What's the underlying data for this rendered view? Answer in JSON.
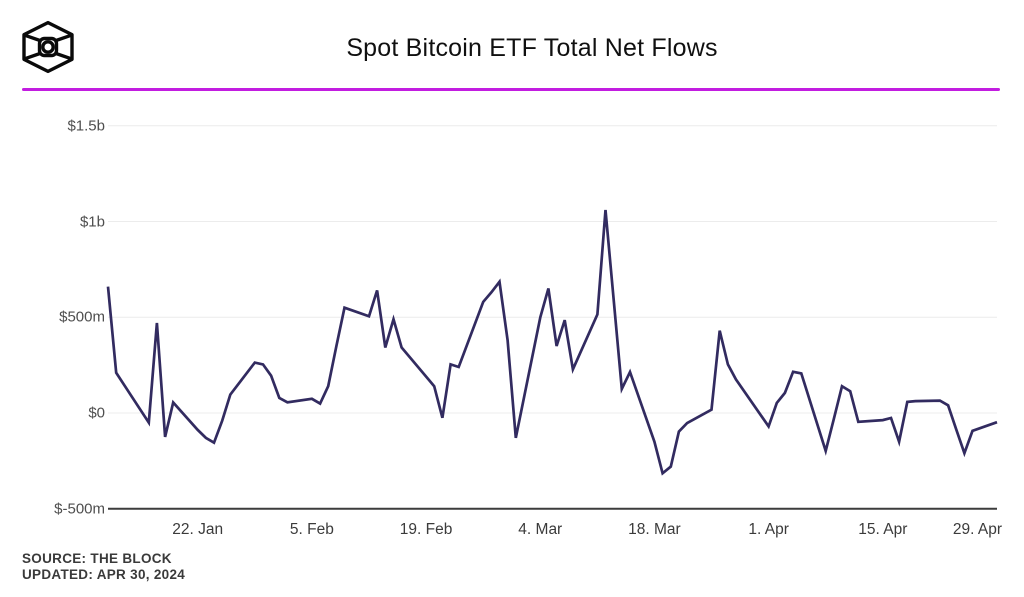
{
  "header": {
    "title": "Spot Bitcoin ETF Total Net Flows",
    "logo_name": "the-block-logo"
  },
  "footer": {
    "source_label": "SOURCE: THE BLOCK",
    "updated_label": "UPDATED: APR 30, 2024"
  },
  "colors": {
    "accent_divider": "#c21de0",
    "line": "#322b60",
    "gridline": "#ececec",
    "axis": "#3c3c3c",
    "logo": "#0a0a0a"
  },
  "chart_data": {
    "type": "line",
    "title": "Spot Bitcoin ETF Total Net Flows",
    "xlabel": "",
    "ylabel": "",
    "legend_position": "none",
    "grid": true,
    "x_axis": {
      "start_date": "2024-01-11",
      "end_date": "2024-04-29",
      "ticks": [
        {
          "label": "22. Jan",
          "date": "2024-01-22"
        },
        {
          "label": "5. Feb",
          "date": "2024-02-05"
        },
        {
          "label": "19. Feb",
          "date": "2024-02-19"
        },
        {
          "label": "4. Mar",
          "date": "2024-03-04"
        },
        {
          "label": "18. Mar",
          "date": "2024-03-18"
        },
        {
          "label": "1. Apr",
          "date": "2024-04-01"
        },
        {
          "label": "15. Apr",
          "date": "2024-04-15"
        },
        {
          "label": "29. Apr",
          "date": "2024-04-29"
        }
      ]
    },
    "y_axis": {
      "unit": "USD millions",
      "range": [
        -500,
        1500
      ],
      "ticks": [
        {
          "label": "$1.5b",
          "value": 1500
        },
        {
          "label": "$1b",
          "value": 1000
        },
        {
          "label": "$500m",
          "value": 500
        },
        {
          "label": "$0",
          "value": 0
        },
        {
          "label": "$-500m",
          "value": -500
        }
      ]
    },
    "series": [
      {
        "name": "Total Net Flows ($m)",
        "points": [
          [
            "2024-01-11",
            660
          ],
          [
            "2024-01-12",
            210
          ],
          [
            "2024-01-16",
            -50
          ],
          [
            "2024-01-17",
            470
          ],
          [
            "2024-01-18",
            -125
          ],
          [
            "2024-01-19",
            55
          ],
          [
            "2024-01-22",
            -88
          ],
          [
            "2024-01-23",
            -130
          ],
          [
            "2024-01-24",
            -155
          ],
          [
            "2024-01-25",
            -40
          ],
          [
            "2024-01-26",
            96
          ],
          [
            "2024-01-29",
            263
          ],
          [
            "2024-01-30",
            254
          ],
          [
            "2024-01-31",
            195
          ],
          [
            "2024-02-01",
            79
          ],
          [
            "2024-02-02",
            56
          ],
          [
            "2024-02-05",
            74
          ],
          [
            "2024-02-06",
            49
          ],
          [
            "2024-02-07",
            140
          ],
          [
            "2024-02-08",
            350
          ],
          [
            "2024-02-09",
            550
          ],
          [
            "2024-02-12",
            505
          ],
          [
            "2024-02-13",
            640
          ],
          [
            "2024-02-14",
            342
          ],
          [
            "2024-02-15",
            490
          ],
          [
            "2024-02-16",
            342
          ],
          [
            "2024-02-20",
            140
          ],
          [
            "2024-02-21",
            -25
          ],
          [
            "2024-02-22",
            254
          ],
          [
            "2024-02-23",
            240
          ],
          [
            "2024-02-26",
            580
          ],
          [
            "2024-02-27",
            630
          ],
          [
            "2024-02-28",
            685
          ],
          [
            "2024-02-29",
            380
          ],
          [
            "2024-03-01",
            -130
          ],
          [
            "2024-03-04",
            500
          ],
          [
            "2024-03-05",
            650
          ],
          [
            "2024-03-06",
            350
          ],
          [
            "2024-03-07",
            485
          ],
          [
            "2024-03-08",
            228
          ],
          [
            "2024-03-11",
            515
          ],
          [
            "2024-03-12",
            1060
          ],
          [
            "2024-03-13",
            590
          ],
          [
            "2024-03-14",
            126
          ],
          [
            "2024-03-15",
            214
          ],
          [
            "2024-03-18",
            -150
          ],
          [
            "2024-03-19",
            -315
          ],
          [
            "2024-03-20",
            -280
          ],
          [
            "2024-03-21",
            -97
          ],
          [
            "2024-03-22",
            -53
          ],
          [
            "2024-03-25",
            17
          ],
          [
            "2024-03-26",
            430
          ],
          [
            "2024-03-27",
            254
          ],
          [
            "2024-03-28",
            175
          ],
          [
            "2024-04-01",
            -70
          ],
          [
            "2024-04-02",
            53
          ],
          [
            "2024-04-03",
            105
          ],
          [
            "2024-04-04",
            215
          ],
          [
            "2024-04-05",
            207
          ],
          [
            "2024-04-08",
            -198
          ],
          [
            "2024-04-09",
            -30
          ],
          [
            "2024-04-10",
            140
          ],
          [
            "2024-04-11",
            114
          ],
          [
            "2024-04-12",
            -46
          ],
          [
            "2024-04-15",
            -37
          ],
          [
            "2024-04-16",
            -26
          ],
          [
            "2024-04-17",
            -150
          ],
          [
            "2024-04-18",
            58
          ],
          [
            "2024-04-19",
            62
          ],
          [
            "2024-04-22",
            65
          ],
          [
            "2024-04-23",
            40
          ],
          [
            "2024-04-24",
            -85
          ],
          [
            "2024-04-25",
            -210
          ],
          [
            "2024-04-26",
            -93
          ],
          [
            "2024-04-29",
            -48
          ]
        ]
      }
    ]
  }
}
